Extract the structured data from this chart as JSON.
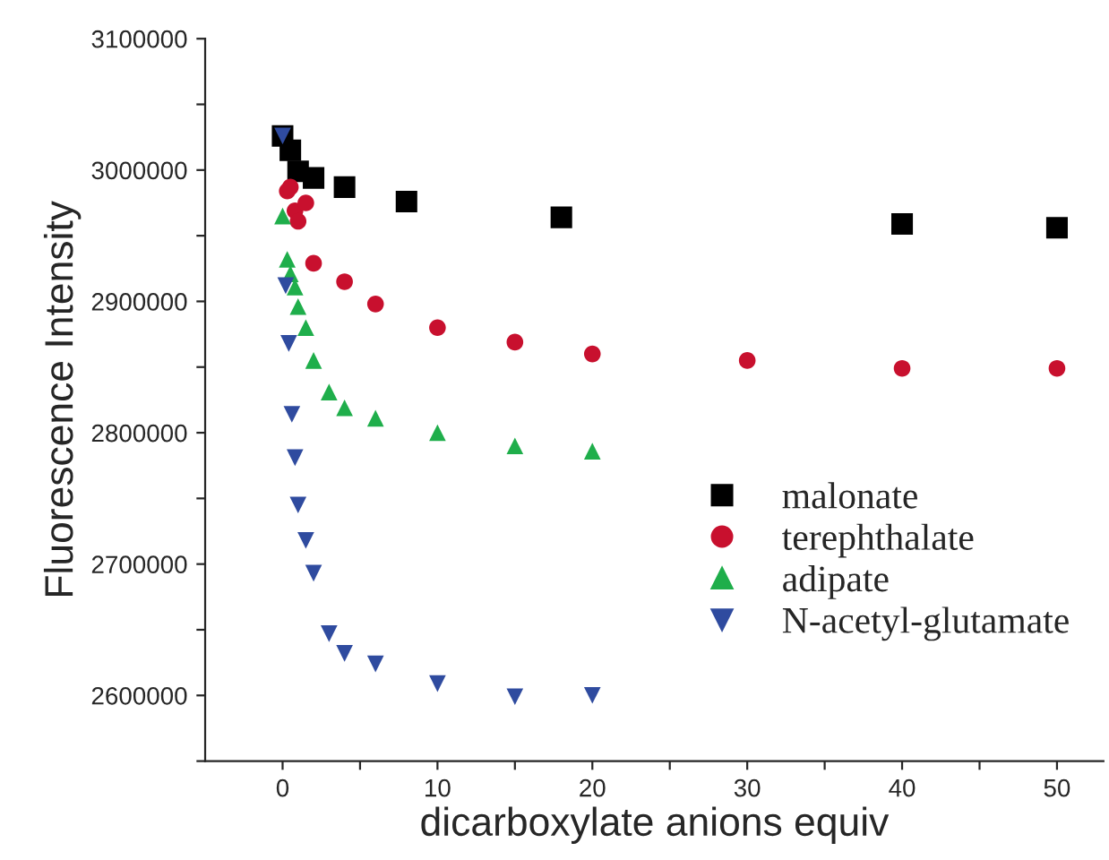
{
  "chart_data": {
    "type": "scatter",
    "xlabel": "dicarboxylate anions equiv",
    "ylabel": "Fluorescence Intensity",
    "xlim": [
      -5,
      53
    ],
    "ylim": [
      2550000,
      3100000
    ],
    "xticks": [
      0,
      {
        "value": 5,
        "label": null
      },
      10,
      {
        "value": 15,
        "label": null
      },
      20,
      {
        "value": 25,
        "label": null
      },
      30,
      {
        "value": 35,
        "label": null
      },
      40,
      {
        "value": 45,
        "label": null
      },
      50
    ],
    "yticks": [
      {
        "value": 2550000,
        "label": null
      },
      2600000,
      {
        "value": 2650000,
        "label": null
      },
      2700000,
      {
        "value": 2750000,
        "label": null
      },
      2800000,
      {
        "value": 2850000,
        "label": null
      },
      2900000,
      {
        "value": 2950000,
        "label": null
      },
      3000000,
      {
        "value": 3050000,
        "label": null
      },
      3100000
    ],
    "legend": "bottom right",
    "grid": false,
    "series": [
      {
        "name": "malonate",
        "color": "#000000",
        "marker": "square",
        "x": [
          0,
          0.5,
          1,
          2,
          4,
          8,
          18,
          40,
          50
        ],
        "values": [
          3026000,
          3015000,
          2999000,
          2994000,
          2987000,
          2976000,
          2964000,
          2959000,
          2956000
        ]
      },
      {
        "name": "terephthalate",
        "color": "#c8102e",
        "marker": "circle",
        "x": [
          0.3,
          0.5,
          0.8,
          1,
          1.5,
          2,
          4,
          6,
          10,
          15,
          20,
          30,
          40,
          50
        ],
        "values": [
          2984000,
          2987000,
          2969000,
          2961000,
          2975000,
          2929000,
          2915000,
          2898000,
          2880000,
          2869000,
          2860000,
          2855000,
          2849000,
          2849000
        ]
      },
      {
        "name": "adipate",
        "color": "#1fae4b",
        "marker": "triangle",
        "x": [
          0,
          0.3,
          0.5,
          0.8,
          1,
          1.5,
          2,
          3,
          4,
          6,
          10,
          15,
          20
        ],
        "values": [
          2965000,
          2932000,
          2921000,
          2911000,
          2896000,
          2880000,
          2855000,
          2831000,
          2819000,
          2811000,
          2800000,
          2790000,
          2786000
        ]
      },
      {
        "name": "N-acetyl-glutamate",
        "color": "#2f4b9f",
        "marker": "triangle_down",
        "x": [
          0,
          0.2,
          0.4,
          0.6,
          0.8,
          1,
          1.5,
          2,
          3,
          4,
          6,
          10,
          15,
          20
        ],
        "values": [
          3026000,
          2912000,
          2868000,
          2814000,
          2781000,
          2745000,
          2718000,
          2693000,
          2647000,
          2632000,
          2624000,
          2609000,
          2599000,
          2600000
        ]
      }
    ]
  }
}
